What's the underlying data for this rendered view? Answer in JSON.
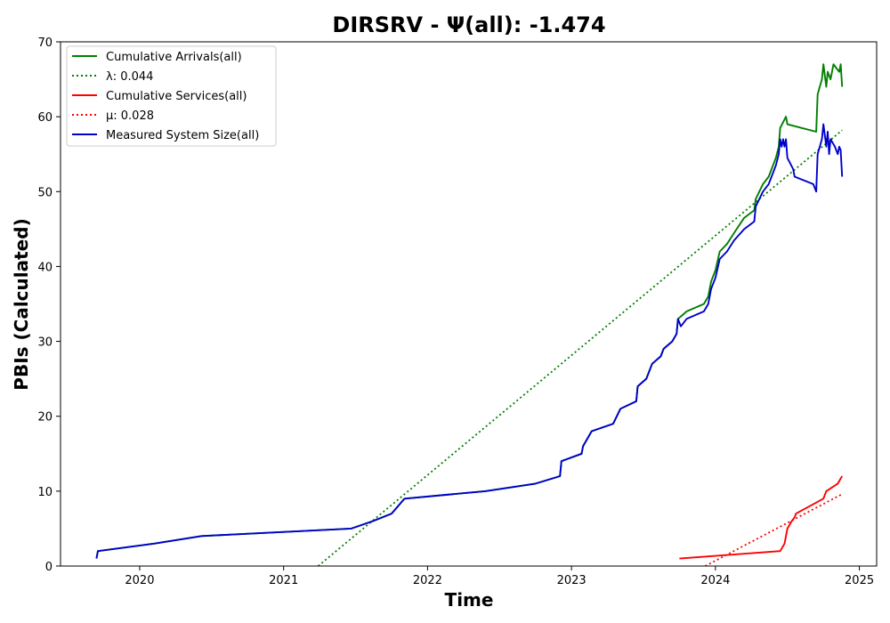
{
  "chart_data": {
    "type": "line",
    "title": "DIRSRV -  Ψ(all): -1.474",
    "xlabel": "Time",
    "ylabel": "PBIs (Calculated)",
    "xlim": [
      2019.45,
      2025.12
    ],
    "ylim": [
      0,
      70
    ],
    "x_ticks": [
      2020,
      2021,
      2022,
      2023,
      2024,
      2025
    ],
    "x_tick_labels": [
      "2020",
      "2021",
      "2022",
      "2023",
      "2024",
      "2025"
    ],
    "y_ticks": [
      0,
      10,
      20,
      30,
      40,
      50,
      60,
      70
    ],
    "y_tick_labels": [
      "0",
      "10",
      "20",
      "30",
      "40",
      "50",
      "60",
      "70"
    ],
    "grid": false,
    "legend_position": "top-left",
    "colors": {
      "arrivals": "#008000",
      "services": "#ff0000",
      "system": "#0000cc"
    },
    "series": [
      {
        "name": "Cumulative Arrivals(all)",
        "color": "#008000",
        "style": "solid",
        "points": [
          [
            2019.7,
            1
          ],
          [
            2019.71,
            2
          ],
          [
            2020.1,
            3
          ],
          [
            2020.43,
            4
          ],
          [
            2021.47,
            5
          ],
          [
            2021.62,
            6
          ],
          [
            2021.75,
            7
          ],
          [
            2021.84,
            9
          ],
          [
            2022.4,
            10
          ],
          [
            2022.75,
            11
          ],
          [
            2022.92,
            12
          ],
          [
            2022.93,
            14
          ],
          [
            2023.07,
            15
          ],
          [
            2023.08,
            16
          ],
          [
            2023.14,
            18
          ],
          [
            2023.29,
            19
          ],
          [
            2023.34,
            21
          ],
          [
            2023.45,
            22
          ],
          [
            2023.46,
            24
          ],
          [
            2023.52,
            25
          ],
          [
            2023.56,
            27
          ],
          [
            2023.62,
            28
          ],
          [
            2023.64,
            29
          ],
          [
            2023.7,
            30
          ],
          [
            2023.73,
            31
          ],
          [
            2023.74,
            33
          ],
          [
            2023.77,
            33.5
          ],
          [
            2023.8,
            34
          ],
          [
            2023.92,
            35
          ],
          [
            2023.95,
            36
          ],
          [
            2023.97,
            38
          ],
          [
            2024.0,
            39.5
          ],
          [
            2024.03,
            42
          ],
          [
            2024.08,
            43
          ],
          [
            2024.13,
            44.5
          ],
          [
            2024.2,
            46.5
          ],
          [
            2024.27,
            47.5
          ],
          [
            2024.28,
            49
          ],
          [
            2024.33,
            51
          ],
          [
            2024.37,
            52
          ],
          [
            2024.42,
            54.5
          ],
          [
            2024.44,
            56
          ],
          [
            2024.45,
            58.5
          ],
          [
            2024.49,
            60
          ],
          [
            2024.5,
            59
          ],
          [
            2024.7,
            58
          ],
          [
            2024.71,
            63
          ],
          [
            2024.74,
            65
          ],
          [
            2024.75,
            67
          ],
          [
            2024.77,
            64
          ],
          [
            2024.78,
            66
          ],
          [
            2024.8,
            65
          ],
          [
            2024.82,
            67
          ],
          [
            2024.84,
            66.5
          ],
          [
            2024.86,
            66
          ],
          [
            2024.87,
            67
          ],
          [
            2024.88,
            64
          ]
        ]
      },
      {
        "name": "λ: 0.044",
        "color": "#008000",
        "style": "dotted",
        "points": [
          [
            2021.24,
            0
          ],
          [
            2024.88,
            58.2
          ]
        ]
      },
      {
        "name": "Cumulative Services(all)",
        "color": "#ff0000",
        "style": "solid",
        "points": [
          [
            2023.75,
            1
          ],
          [
            2024.45,
            2
          ],
          [
            2024.48,
            3
          ],
          [
            2024.5,
            5
          ],
          [
            2024.53,
            6
          ],
          [
            2024.55,
            6.5
          ],
          [
            2024.56,
            7
          ],
          [
            2024.75,
            9
          ],
          [
            2024.77,
            10
          ],
          [
            2024.85,
            11
          ],
          [
            2024.88,
            12
          ]
        ]
      },
      {
        "name": "μ: 0.028",
        "color": "#ff0000",
        "style": "dotted",
        "points": [
          [
            2023.93,
            0
          ],
          [
            2024.88,
            9.6
          ]
        ]
      },
      {
        "name": "Measured System Size(all)",
        "color": "#0000cc",
        "style": "solid",
        "points": [
          [
            2019.7,
            1
          ],
          [
            2019.71,
            2
          ],
          [
            2020.1,
            3
          ],
          [
            2020.43,
            4
          ],
          [
            2021.47,
            5
          ],
          [
            2021.62,
            6
          ],
          [
            2021.75,
            7
          ],
          [
            2021.84,
            9
          ],
          [
            2022.4,
            10
          ],
          [
            2022.75,
            11
          ],
          [
            2022.92,
            12
          ],
          [
            2022.93,
            14
          ],
          [
            2023.07,
            15
          ],
          [
            2023.08,
            16
          ],
          [
            2023.14,
            18
          ],
          [
            2023.29,
            19
          ],
          [
            2023.34,
            21
          ],
          [
            2023.45,
            22
          ],
          [
            2023.46,
            24
          ],
          [
            2023.52,
            25
          ],
          [
            2023.56,
            27
          ],
          [
            2023.62,
            28
          ],
          [
            2023.64,
            29
          ],
          [
            2023.7,
            30
          ],
          [
            2023.73,
            31
          ],
          [
            2023.74,
            33
          ],
          [
            2023.76,
            32
          ],
          [
            2023.8,
            33
          ],
          [
            2023.92,
            34
          ],
          [
            2023.95,
            35
          ],
          [
            2023.97,
            37
          ],
          [
            2024.0,
            38.5
          ],
          [
            2024.03,
            41
          ],
          [
            2024.08,
            42
          ],
          [
            2024.13,
            43.5
          ],
          [
            2024.2,
            45
          ],
          [
            2024.27,
            46
          ],
          [
            2024.28,
            48
          ],
          [
            2024.33,
            50
          ],
          [
            2024.37,
            51
          ],
          [
            2024.42,
            53.5
          ],
          [
            2024.44,
            55
          ],
          [
            2024.45,
            57
          ],
          [
            2024.46,
            56
          ],
          [
            2024.47,
            57
          ],
          [
            2024.48,
            56
          ],
          [
            2024.49,
            57
          ],
          [
            2024.5,
            54.5
          ],
          [
            2024.54,
            53
          ],
          [
            2024.55,
            52
          ],
          [
            2024.68,
            51
          ],
          [
            2024.7,
            50
          ],
          [
            2024.71,
            55
          ],
          [
            2024.74,
            57
          ],
          [
            2024.75,
            59
          ],
          [
            2024.77,
            56
          ],
          [
            2024.78,
            58
          ],
          [
            2024.79,
            55
          ],
          [
            2024.8,
            57
          ],
          [
            2024.83,
            56
          ],
          [
            2024.85,
            55
          ],
          [
            2024.86,
            56
          ],
          [
            2024.87,
            55.5
          ],
          [
            2024.88,
            52
          ]
        ]
      }
    ]
  }
}
